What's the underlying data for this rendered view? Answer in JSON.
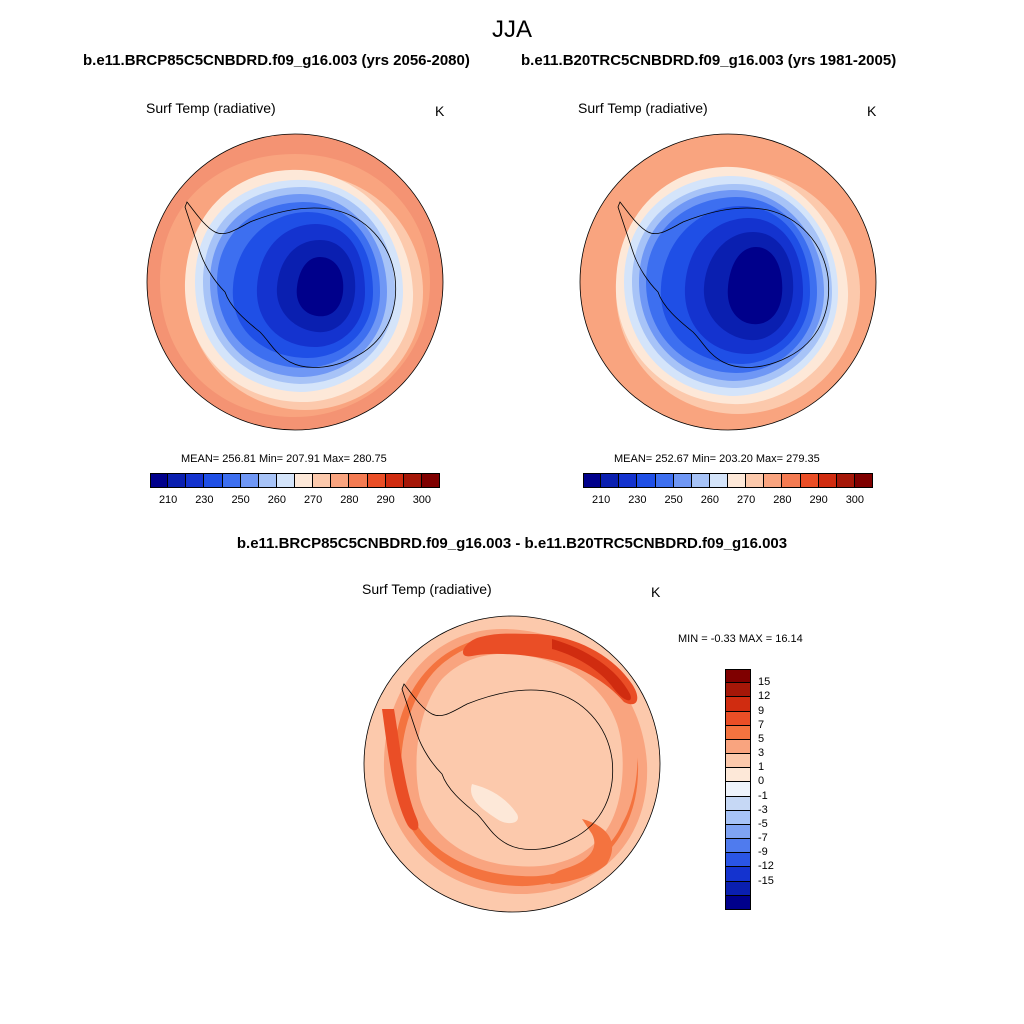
{
  "title": "JJA",
  "panels": [
    {
      "run": "b.e11.BRCP85C5CNBDRD.f09_g16.003 (yrs 2056-2080)",
      "variable": "Surf Temp (radiative)",
      "units": "K",
      "stats": "MEAN= 256.81  Min= 207.91  Max= 280.75"
    },
    {
      "run": "b.e11.B20TRC5CNBDRD.f09_g16.003 (yrs 1981-2005)",
      "variable": "Surf Temp (radiative)",
      "units": "K",
      "stats": "MEAN= 252.67  Min= 203.20  Max= 279.35"
    }
  ],
  "colorbar": {
    "colors": [
      "#00008b",
      "#0a1fb0",
      "#1433cf",
      "#1f4fe6",
      "#3d6ff0",
      "#6f97f5",
      "#a7c3f7",
      "#d4e4fa",
      "#fde8d8",
      "#fcc9ac",
      "#f9a47f",
      "#f47b52",
      "#ea4e26",
      "#d02c10",
      "#a51708",
      "#7f0000"
    ],
    "labels": [
      "210",
      "230",
      "250",
      "260",
      "270",
      "280",
      "290",
      "300"
    ]
  },
  "difference": {
    "title": "b.e11.BRCP85C5CNBDRD.f09_g16.003 - b.e11.B20TRC5CNBDRD.f09_g16.003",
    "variable": "Surf Temp (radiative)",
    "units": "K",
    "stats": "MIN =  -0.33 MAX =  16.14",
    "colorbar": {
      "colors": [
        "#7f0000",
        "#a51708",
        "#d02c10",
        "#ea4e26",
        "#f4733f",
        "#f9a47f",
        "#fcc9ac",
        "#fde8d8",
        "#eef3fb",
        "#c6d8f5",
        "#a7c3f7",
        "#7fa3f3",
        "#4f7bee",
        "#2a55e6",
        "#1433cf",
        "#0a1fb0",
        "#00008b"
      ],
      "labels": [
        "15",
        "12",
        "9",
        "7",
        "5",
        "3",
        "1",
        "0",
        "-1",
        "-3",
        "-5",
        "-7",
        "-9",
        "-12",
        "-15"
      ]
    }
  }
}
